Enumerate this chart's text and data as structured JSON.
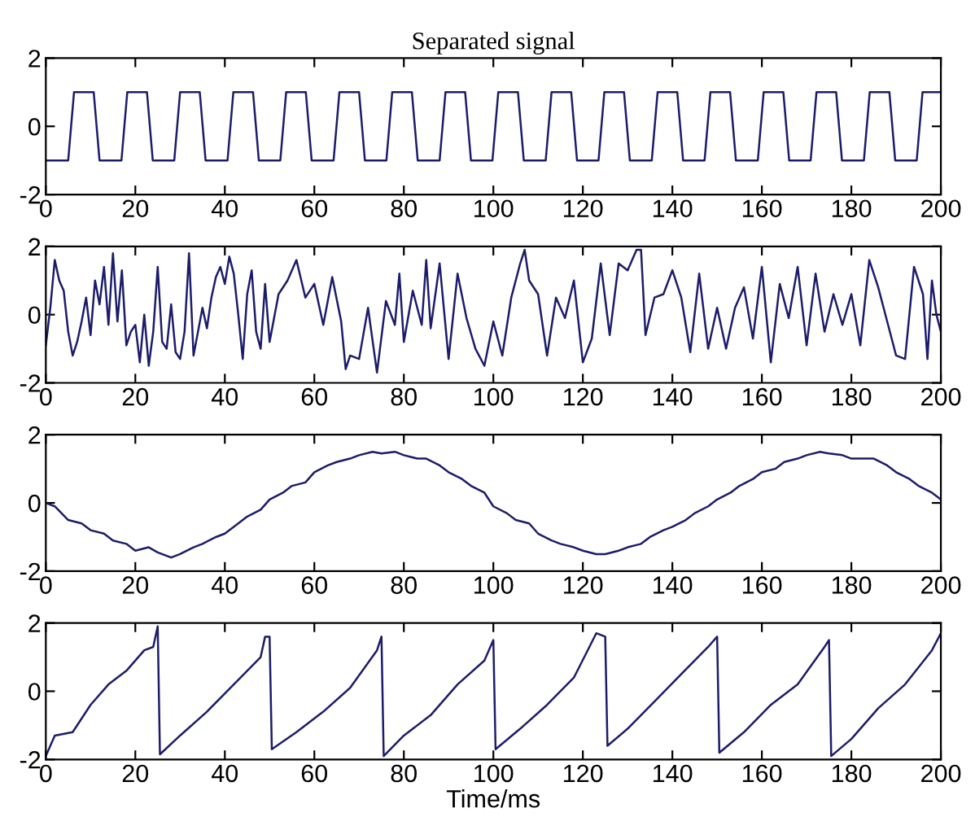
{
  "chart_data": [
    {
      "type": "line",
      "title": "Separated signal",
      "xlim": [
        0,
        200
      ],
      "ylim": [
        -2,
        2
      ],
      "xticks": [
        0,
        20,
        40,
        60,
        80,
        100,
        120,
        140,
        160,
        180,
        200
      ],
      "yticks": [
        -2,
        0,
        2
      ],
      "grid": false,
      "legend": false,
      "series": [
        {
          "color": "#1c1c6b",
          "x": [
            0,
            5.0,
            6.3,
            10.7,
            12.0,
            16.9,
            18.2,
            22.6,
            23.9,
            28.7,
            30.0,
            34.4,
            35.7,
            40.6,
            41.9,
            46.3,
            47.6,
            52.4,
            53.7,
            58.1,
            59.4,
            64.3,
            65.6,
            70.0,
            71.3,
            76.1,
            77.4,
            81.8,
            83.1,
            88.0,
            89.3,
            93.7,
            95.0,
            99.8,
            101.1,
            105.5,
            106.8,
            111.7,
            113.0,
            117.4,
            118.7,
            123.5,
            124.8,
            129.2,
            130.5,
            135.4,
            136.7,
            141.1,
            142.4,
            147.2,
            148.5,
            152.9,
            154.2,
            159.1,
            160.4,
            164.8,
            166.1,
            170.9,
            172.2,
            176.6,
            177.9,
            182.8,
            184.1,
            188.5,
            189.8,
            194.6,
            195.9,
            200
          ],
          "values": [
            -1,
            -1,
            1,
            1,
            -1,
            -1,
            1,
            1,
            -1,
            -1,
            1,
            1,
            -1,
            -1,
            1,
            1,
            -1,
            -1,
            1,
            1,
            -1,
            -1,
            1,
            1,
            -1,
            -1,
            1,
            1,
            -1,
            -1,
            1,
            1,
            -1,
            -1,
            1,
            1,
            -1,
            -1,
            1,
            1,
            -1,
            -1,
            1,
            1,
            -1,
            -1,
            1,
            1,
            -1,
            -1,
            1,
            1,
            -1,
            -1,
            1,
            1,
            -1,
            -1,
            1,
            1,
            -1,
            -1,
            1,
            1,
            -1,
            -1,
            1,
            1
          ]
        }
      ]
    },
    {
      "type": "line",
      "xlim": [
        0,
        200
      ],
      "ylim": [
        -2,
        2
      ],
      "xticks": [
        0,
        20,
        40,
        60,
        80,
        100,
        120,
        140,
        160,
        180,
        200
      ],
      "yticks": [
        -2,
        0,
        2
      ],
      "grid": false,
      "legend": false,
      "series": [
        {
          "color": "#1c1c6b",
          "x": [
            0,
            1,
            2,
            3,
            4,
            5,
            6,
            7,
            8,
            9,
            10,
            11,
            12,
            13,
            14,
            15,
            16,
            17,
            18,
            19,
            20,
            21,
            22,
            23,
            24,
            25,
            26,
            27,
            28,
            29,
            30,
            31,
            32,
            33,
            34,
            35,
            36,
            37,
            38,
            39,
            40,
            41,
            42,
            43,
            44,
            45,
            46,
            47,
            48,
            49,
            50,
            52,
            54,
            56,
            58,
            60,
            62,
            64,
            66,
            67,
            68,
            70,
            72,
            74,
            76,
            78,
            79,
            80,
            82,
            84,
            85,
            86,
            88,
            90,
            92,
            94,
            96,
            98,
            100,
            102,
            104,
            106,
            107,
            108,
            110,
            112,
            114,
            116,
            118,
            120,
            122,
            124,
            126,
            128,
            130,
            132,
            133,
            134,
            136,
            138,
            140,
            142,
            144,
            146,
            148,
            150,
            152,
            154,
            156,
            158,
            160,
            162,
            164,
            166,
            168,
            170,
            172,
            174,
            176,
            178,
            180,
            182,
            184,
            186,
            188,
            190,
            192,
            194,
            196,
            197,
            198,
            199,
            200
          ],
          "values": [
            -0.9,
            0.2,
            1.6,
            1.0,
            0.7,
            -0.5,
            -1.2,
            -0.8,
            -0.2,
            0.5,
            -0.6,
            1.0,
            0.3,
            1.4,
            -0.3,
            1.8,
            -0.2,
            1.3,
            -0.9,
            -0.5,
            -0.3,
            -1.4,
            0.0,
            -1.5,
            -0.5,
            1.4,
            -0.8,
            -1.0,
            0.3,
            -1.1,
            -1.3,
            -0.5,
            1.8,
            -1.2,
            -0.5,
            0.2,
            -0.4,
            0.5,
            1.1,
            1.4,
            0.9,
            1.7,
            1.2,
            0.0,
            -1.3,
            0.6,
            1.3,
            -0.5,
            -1.0,
            0.9,
            -0.8,
            0.6,
            1.0,
            1.6,
            0.5,
            0.9,
            -0.3,
            1.1,
            -0.2,
            -1.6,
            -1.2,
            -1.3,
            0.2,
            -1.7,
            0.4,
            -0.3,
            1.2,
            -0.8,
            0.7,
            -0.3,
            1.6,
            -0.4,
            1.5,
            -1.3,
            1.2,
            -0.1,
            -1.0,
            -1.5,
            -0.2,
            -1.2,
            0.5,
            1.5,
            1.9,
            1.0,
            0.6,
            -1.2,
            0.5,
            -0.1,
            1.0,
            -1.4,
            -0.7,
            1.5,
            -0.6,
            1.5,
            1.3,
            1.9,
            1.9,
            -0.6,
            0.5,
            0.6,
            1.3,
            0.5,
            -1.1,
            1.2,
            -1.0,
            0.2,
            -1.0,
            0.2,
            0.8,
            -0.7,
            1.4,
            -1.4,
            0.9,
            -0.1,
            1.4,
            -0.9,
            1.2,
            -0.5,
            0.6,
            -0.3,
            0.6,
            -0.9,
            1.6,
            0.8,
            -0.2,
            -1.2,
            -1.3,
            1.4,
            0.6,
            -1.3,
            1.0,
            0.0,
            -0.5
          ]
        }
      ]
    },
    {
      "type": "line",
      "xlim": [
        0,
        200
      ],
      "ylim": [
        -2,
        2
      ],
      "xticks": [
        0,
        20,
        40,
        60,
        80,
        100,
        120,
        140,
        160,
        180,
        200
      ],
      "yticks": [
        -2,
        0,
        2
      ],
      "grid": false,
      "legend": false,
      "series": [
        {
          "color": "#1c1c6b",
          "x": [
            0,
            2,
            5,
            8,
            10,
            13,
            15,
            18,
            20,
            23,
            25,
            28,
            30,
            33,
            35,
            38,
            40,
            43,
            45,
            48,
            50,
            53,
            55,
            58,
            60,
            63,
            65,
            68,
            70,
            73,
            75,
            78,
            80,
            83,
            85,
            88,
            90,
            93,
            95,
            98,
            100,
            103,
            105,
            108,
            110,
            113,
            115,
            118,
            120,
            123,
            125,
            128,
            130,
            133,
            135,
            138,
            140,
            143,
            145,
            148,
            150,
            153,
            155,
            158,
            160,
            163,
            165,
            168,
            170,
            173,
            175,
            178,
            180,
            183,
            185,
            188,
            190,
            193,
            195,
            198,
            200
          ],
          "values": [
            0,
            -0.1,
            -0.5,
            -0.6,
            -0.8,
            -0.9,
            -1.1,
            -1.2,
            -1.4,
            -1.3,
            -1.45,
            -1.6,
            -1.5,
            -1.3,
            -1.2,
            -1.0,
            -0.9,
            -0.6,
            -0.4,
            -0.2,
            0.1,
            0.3,
            0.5,
            0.6,
            0.9,
            1.1,
            1.2,
            1.3,
            1.4,
            1.5,
            1.45,
            1.5,
            1.4,
            1.3,
            1.3,
            1.1,
            0.9,
            0.7,
            0.5,
            0.3,
            -0.1,
            -0.3,
            -0.5,
            -0.6,
            -0.9,
            -1.1,
            -1.2,
            -1.3,
            -1.4,
            -1.5,
            -1.5,
            -1.4,
            -1.3,
            -1.2,
            -1.0,
            -0.8,
            -0.7,
            -0.5,
            -0.3,
            -0.1,
            0.1,
            0.3,
            0.5,
            0.7,
            0.9,
            1.0,
            1.2,
            1.3,
            1.4,
            1.5,
            1.45,
            1.4,
            1.3,
            1.3,
            1.3,
            1.1,
            0.9,
            0.7,
            0.5,
            0.3,
            0.1
          ]
        }
      ]
    },
    {
      "type": "line",
      "xlabel": "Time/ms",
      "xlim": [
        0,
        200
      ],
      "ylim": [
        -2,
        2
      ],
      "xticks": [
        0,
        20,
        40,
        60,
        80,
        100,
        120,
        140,
        160,
        180,
        200
      ],
      "yticks": [
        -2,
        0,
        2
      ],
      "grid": false,
      "legend": false,
      "series": [
        {
          "color": "#1c1c6b",
          "x": [
            0,
            2,
            6,
            10,
            14,
            18,
            22,
            24,
            25,
            25.5,
            30,
            36,
            42,
            48,
            49,
            50,
            50.5,
            56,
            62,
            68,
            74,
            75,
            75.5,
            80,
            86,
            92,
            98,
            100,
            100.5,
            106,
            112,
            118,
            123,
            125,
            125.5,
            130,
            136,
            142,
            148,
            150,
            150.5,
            156,
            162,
            168,
            174,
            175,
            175.5,
            180,
            186,
            192,
            198,
            200
          ],
          "values": [
            -1.9,
            -1.3,
            -1.2,
            -0.4,
            0.2,
            0.6,
            1.2,
            1.3,
            1.9,
            -1.85,
            -1.3,
            -0.6,
            0.2,
            1.0,
            1.6,
            1.6,
            -1.7,
            -1.2,
            -0.6,
            0.1,
            1.2,
            1.6,
            -1.9,
            -1.3,
            -0.7,
            0.2,
            0.9,
            1.5,
            -1.7,
            -1.1,
            -0.4,
            0.4,
            1.7,
            1.6,
            -1.6,
            -1.1,
            -0.3,
            0.5,
            1.3,
            1.6,
            -1.8,
            -1.2,
            -0.4,
            0.2,
            1.3,
            1.5,
            -1.9,
            -1.4,
            -0.5,
            0.2,
            1.2,
            1.7
          ]
        }
      ]
    }
  ]
}
